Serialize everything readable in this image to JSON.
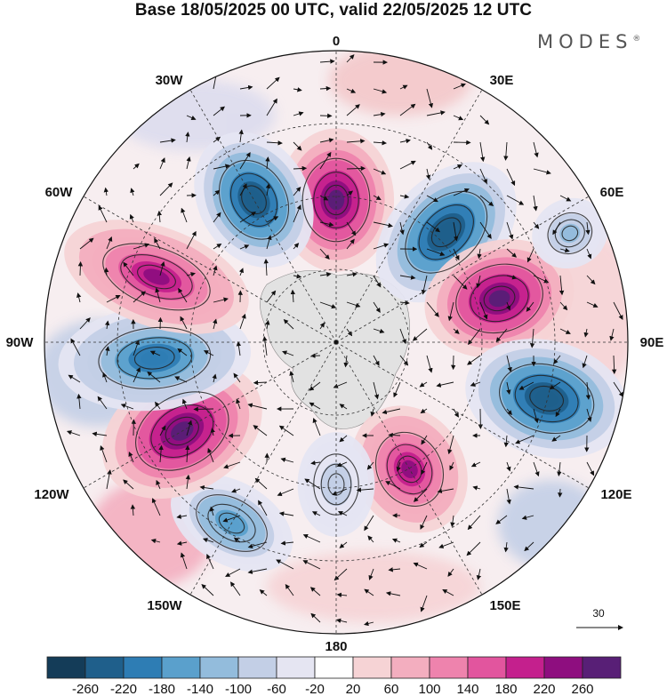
{
  "title": "Base 18/05/2025 00 UTC, valid 22/05/2025 12 UTC",
  "brand": {
    "name": "MODES",
    "mark": "®"
  },
  "map": {
    "projection": "polar-stereographic-south",
    "longitude_labels": {
      "lon_0": "0",
      "lon_30E": "30E",
      "lon_60E": "60E",
      "lon_90E": "90E",
      "lon_120E": "120E",
      "lon_150E": "150E",
      "lon_180": "180",
      "lon_150W": "150W",
      "lon_120W": "120W",
      "lon_90W": "90W",
      "lon_60W": "60W",
      "lon_30W": "30W"
    },
    "vector_reference": "30",
    "anomaly_centers": [
      {
        "sign": "positive",
        "level": 260,
        "lon": "0"
      },
      {
        "sign": "negative",
        "level": -260,
        "lon": "45E"
      },
      {
        "sign": "positive",
        "level": 260,
        "lon": "75E"
      },
      {
        "sign": "negative",
        "level": -140,
        "lon": "65E"
      },
      {
        "sign": "negative",
        "level": -260,
        "lon": "105E"
      },
      {
        "sign": "positive",
        "level": 220,
        "lon": "150E"
      },
      {
        "sign": "negative",
        "level": -100,
        "lon": "180"
      },
      {
        "sign": "negative",
        "level": -180,
        "lon": "150W"
      },
      {
        "sign": "positive",
        "level": 260,
        "lon": "120W"
      },
      {
        "sign": "negative",
        "level": -220,
        "lon": "95W"
      },
      {
        "sign": "positive",
        "level": 220,
        "lon": "70W"
      },
      {
        "sign": "negative",
        "level": -260,
        "lon": "30W"
      }
    ]
  },
  "colorbar": {
    "colors": [
      "#143c58",
      "#1f5f8b",
      "#2e7db4",
      "#5aa0cc",
      "#93bcdc",
      "#c3cfe6",
      "#e5e5f2",
      "#ffffff",
      "#f6d3d5",
      "#f3aebf",
      "#ee83ad",
      "#e2559e",
      "#c4208d",
      "#8e0e7f",
      "#581f76"
    ],
    "labels": [
      "-260",
      "-220",
      "-180",
      "-140",
      "-100",
      "-60",
      "-20",
      "20",
      "60",
      "100",
      "140",
      "180",
      "220",
      "260"
    ]
  }
}
